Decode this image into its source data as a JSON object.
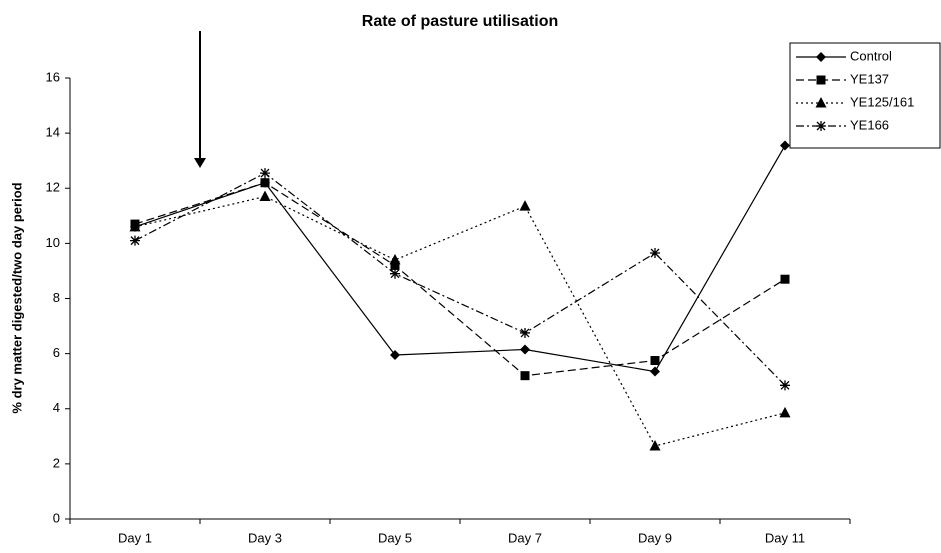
{
  "chart_data": {
    "type": "line",
    "title": "Rate of pasture utilisation",
    "y_label": "% dry matter digested/two day period",
    "categories": [
      "Day 1",
      "Day 3",
      "Day 5",
      "Day 7",
      "Day 9",
      "Day 11"
    ],
    "series": [
      {
        "name": "Control",
        "color": "#000000",
        "marker": "diamond",
        "dash": "solid",
        "values": [
          10.6,
          12.2,
          5.95,
          6.15,
          5.35,
          13.55
        ]
      },
      {
        "name": "YE137",
        "color": "#000000",
        "marker": "square",
        "dash": "dashed",
        "values": [
          10.7,
          12.2,
          9.2,
          5.2,
          5.75,
          8.7
        ]
      },
      {
        "name": "YE125/161",
        "color": "#000000",
        "marker": "triangle",
        "dash": "dotted",
        "values": [
          10.6,
          11.7,
          9.4,
          11.35,
          2.65,
          3.85
        ]
      },
      {
        "name": "YE166",
        "color": "#000000",
        "marker": "asterisk",
        "dash": "dashdot",
        "values": [
          10.1,
          12.55,
          8.9,
          6.75,
          9.65,
          4.85
        ]
      }
    ],
    "ylim": [
      0,
      16
    ],
    "yticks": [
      0,
      2,
      4,
      6,
      8,
      10,
      12,
      14,
      16
    ],
    "grid": false,
    "legend": "top-right"
  }
}
